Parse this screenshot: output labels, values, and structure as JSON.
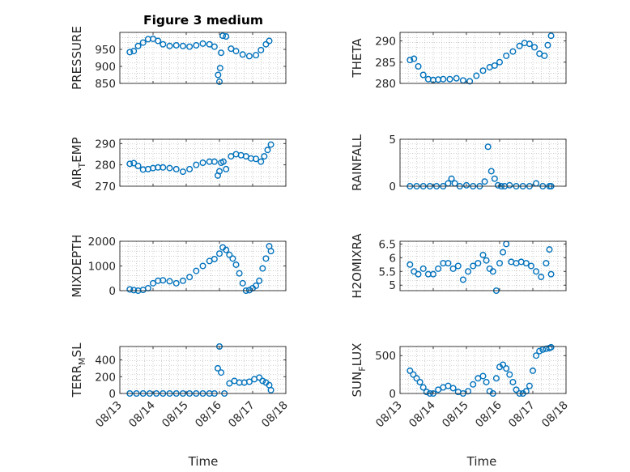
{
  "figure": {
    "title": "Figure 3 medium",
    "xlabel": "Time"
  },
  "colors": {
    "marker": "#0072BD",
    "axis": "#262626",
    "grid": "#b0b0b0",
    "background": "#ffffff"
  },
  "chart_data": [
    {
      "type": "scatter",
      "name": "pressure",
      "ylabel": "PRESSURE",
      "ylim": [
        850,
        1000
      ],
      "yticks": [
        850,
        900,
        950
      ],
      "ytick_labels": [
        "850",
        "900",
        "950"
      ],
      "xlim": [
        0,
        5
      ],
      "xticks": [
        0,
        1,
        2,
        3,
        4,
        5
      ],
      "xtick_labels": [],
      "grid": true,
      "marker": "open-circle",
      "x": [
        0.3,
        0.42,
        0.55,
        0.7,
        0.85,
        1.0,
        1.15,
        1.3,
        1.5,
        1.7,
        1.9,
        2.1,
        2.3,
        2.5,
        2.7,
        2.85,
        2.96,
        3.0,
        3.02,
        3.05,
        3.1,
        3.2,
        3.35,
        3.5,
        3.7,
        3.9,
        4.1,
        4.25,
        4.4,
        4.5
      ],
      "y": [
        942,
        945,
        960,
        970,
        980,
        981,
        975,
        965,
        960,
        962,
        960,
        958,
        962,
        967,
        965,
        958,
        875,
        855,
        895,
        940,
        990,
        988,
        952,
        945,
        935,
        930,
        933,
        948,
        965,
        975
      ]
    },
    {
      "type": "scatter",
      "name": "theta",
      "ylabel": "THETA",
      "ylim": [
        280,
        292
      ],
      "yticks": [
        280,
        285,
        290
      ],
      "ytick_labels": [
        "280",
        "285",
        "290"
      ],
      "xlim": [
        0,
        5
      ],
      "xticks": [
        0,
        1,
        2,
        3,
        4,
        5
      ],
      "xtick_labels": [],
      "grid": true,
      "marker": "open-circle",
      "x": [
        0.3,
        0.42,
        0.55,
        0.7,
        0.85,
        1.0,
        1.15,
        1.3,
        1.5,
        1.7,
        1.9,
        2.1,
        2.3,
        2.5,
        2.7,
        2.85,
        3.0,
        3.2,
        3.4,
        3.6,
        3.75,
        3.9,
        4.05,
        4.2,
        4.35,
        4.45,
        4.55
      ],
      "y": [
        285.5,
        285.8,
        284.0,
        282.0,
        281.0,
        280.8,
        280.9,
        281.0,
        281.0,
        281.2,
        280.7,
        280.5,
        281.8,
        283.0,
        283.8,
        284.2,
        285.0,
        286.5,
        287.5,
        288.8,
        289.5,
        289.3,
        288.5,
        287.0,
        286.5,
        289.0,
        291.2
      ]
    },
    {
      "type": "scatter",
      "name": "air_temp",
      "ylabel": "AIR_TEMP",
      "ylim": [
        270,
        292
      ],
      "yticks": [
        270,
        280,
        290
      ],
      "ytick_labels": [
        "270",
        "280",
        "290"
      ],
      "xlim": [
        0,
        5
      ],
      "xticks": [
        0,
        1,
        2,
        3,
        4,
        5
      ],
      "xtick_labels": [],
      "grid": true,
      "marker": "open-circle",
      "x": [
        0.3,
        0.42,
        0.55,
        0.7,
        0.85,
        1.0,
        1.15,
        1.3,
        1.5,
        1.7,
        1.9,
        2.1,
        2.3,
        2.5,
        2.7,
        2.85,
        2.95,
        3.0,
        3.05,
        3.12,
        3.2,
        3.35,
        3.5,
        3.65,
        3.8,
        3.95,
        4.1,
        4.25,
        4.35,
        4.45,
        4.55
      ],
      "y": [
        280.5,
        280.8,
        279.5,
        277.8,
        278.0,
        278.5,
        278.8,
        278.8,
        278.5,
        278.0,
        276.8,
        278.0,
        280.0,
        281.0,
        281.5,
        281.5,
        275.0,
        277.0,
        281.0,
        281.5,
        278.0,
        284.0,
        285.0,
        284.5,
        284.0,
        283.0,
        282.8,
        281.5,
        284.0,
        287.0,
        289.5
      ]
    },
    {
      "type": "scatter",
      "name": "rainfall",
      "ylabel": "RAINFALL",
      "ylim": [
        0,
        5
      ],
      "yticks": [
        0,
        5
      ],
      "ytick_labels": [
        "0",
        "5"
      ],
      "xlim": [
        0,
        5
      ],
      "xticks": [
        0,
        1,
        2,
        3,
        4,
        5
      ],
      "xtick_labels": [],
      "grid": true,
      "marker": "open-circle",
      "x": [
        0.3,
        0.5,
        0.7,
        0.9,
        1.1,
        1.3,
        1.45,
        1.55,
        1.65,
        1.8,
        2.0,
        2.2,
        2.4,
        2.55,
        2.65,
        2.75,
        2.85,
        2.95,
        3.05,
        3.15,
        3.3,
        3.5,
        3.7,
        3.9,
        4.1,
        4.3,
        4.5,
        4.55
      ],
      "y": [
        0,
        0,
        0,
        0,
        0,
        0,
        0.3,
        0.8,
        0.3,
        0,
        0.1,
        0,
        0,
        0.5,
        4.2,
        1.6,
        0.8,
        0.1,
        0,
        0,
        0.1,
        0,
        0,
        0,
        0.3,
        0,
        0,
        0
      ]
    },
    {
      "type": "scatter",
      "name": "mixdepth",
      "ylabel": "MIXDEPTH",
      "ylim": [
        0,
        2000
      ],
      "yticks": [
        0,
        1000,
        2000
      ],
      "ytick_labels": [
        "0",
        "1000",
        "2000"
      ],
      "xlim": [
        0,
        5
      ],
      "xticks": [
        0,
        1,
        2,
        3,
        4,
        5
      ],
      "xtick_labels": [],
      "grid": true,
      "marker": "open-circle",
      "x": [
        0.3,
        0.42,
        0.55,
        0.7,
        0.85,
        1.0,
        1.15,
        1.3,
        1.5,
        1.7,
        1.9,
        2.1,
        2.3,
        2.5,
        2.7,
        2.85,
        3.0,
        3.1,
        3.2,
        3.3,
        3.4,
        3.5,
        3.6,
        3.7,
        3.8,
        3.9,
        4.0,
        4.1,
        4.2,
        4.3,
        4.4,
        4.5,
        4.55
      ],
      "y": [
        50,
        20,
        0,
        30,
        100,
        300,
        400,
        420,
        380,
        300,
        400,
        550,
        800,
        1000,
        1200,
        1280,
        1500,
        1750,
        1650,
        1450,
        1300,
        1050,
        700,
        300,
        0,
        20,
        100,
        200,
        400,
        900,
        1300,
        1800,
        1600
      ]
    },
    {
      "type": "scatter",
      "name": "h2omixra",
      "ylabel": "H2OMIXRA",
      "ylim": [
        4.8,
        6.6
      ],
      "yticks": [
        5,
        5.5,
        6,
        6.5
      ],
      "ytick_labels": [
        "5",
        "5.5",
        "6",
        "6.5"
      ],
      "xlim": [
        0,
        5
      ],
      "xticks": [
        0,
        1,
        2,
        3,
        4,
        5
      ],
      "xtick_labels": [],
      "grid": true,
      "marker": "open-circle",
      "x": [
        0.3,
        0.42,
        0.55,
        0.7,
        0.85,
        1.0,
        1.15,
        1.3,
        1.45,
        1.6,
        1.75,
        1.9,
        2.05,
        2.2,
        2.35,
        2.5,
        2.6,
        2.7,
        2.8,
        2.9,
        3.0,
        3.1,
        3.2,
        3.35,
        3.5,
        3.65,
        3.8,
        3.95,
        4.1,
        4.25,
        4.4,
        4.5,
        4.55
      ],
      "y": [
        5.75,
        5.5,
        5.4,
        5.6,
        5.4,
        5.4,
        5.6,
        5.8,
        5.8,
        5.6,
        5.7,
        5.2,
        5.5,
        5.7,
        5.8,
        6.1,
        5.9,
        5.6,
        5.5,
        4.8,
        5.8,
        6.2,
        6.5,
        5.85,
        5.8,
        5.85,
        5.8,
        5.7,
        5.5,
        5.3,
        5.8,
        6.3,
        5.4
      ]
    },
    {
      "type": "scatter",
      "name": "terr_msl",
      "ylabel": "TERR_MSL",
      "ylim": [
        0,
        560
      ],
      "yticks": [
        0,
        200,
        400
      ],
      "ytick_labels": [
        "0",
        "200",
        "400"
      ],
      "xlim": [
        0,
        5
      ],
      "xticks": [
        0,
        1,
        2,
        3,
        4,
        5
      ],
      "xtick_labels": [
        "08/13",
        "08/14",
        "08/15",
        "08/16",
        "08/17",
        "08/18"
      ],
      "grid": true,
      "marker": "open-circle",
      "x": [
        0.3,
        0.5,
        0.7,
        0.9,
        1.1,
        1.3,
        1.5,
        1.7,
        1.9,
        2.1,
        2.3,
        2.5,
        2.7,
        2.85,
        2.95,
        3.0,
        3.05,
        3.15,
        3.3,
        3.45,
        3.6,
        3.75,
        3.9,
        4.05,
        4.2,
        4.3,
        4.4,
        4.5,
        4.55
      ],
      "y": [
        0,
        0,
        0,
        0,
        0,
        0,
        0,
        0,
        0,
        0,
        0,
        0,
        0,
        0,
        300,
        560,
        250,
        0,
        120,
        150,
        130,
        130,
        140,
        170,
        190,
        150,
        130,
        100,
        40
      ]
    },
    {
      "type": "scatter",
      "name": "sun_flux",
      "ylabel": "SUN_FLUX",
      "ylim": [
        0,
        620
      ],
      "yticks": [
        0,
        500
      ],
      "ytick_labels": [
        "0",
        "500"
      ],
      "xlim": [
        0,
        5
      ],
      "xticks": [
        0,
        1,
        2,
        3,
        4,
        5
      ],
      "xtick_labels": [
        "08/13",
        "08/14",
        "08/15",
        "08/16",
        "08/17",
        "08/18"
      ],
      "grid": true,
      "marker": "open-circle",
      "x": [
        0.3,
        0.4,
        0.5,
        0.6,
        0.7,
        0.8,
        0.9,
        1.0,
        1.15,
        1.3,
        1.45,
        1.6,
        1.75,
        1.9,
        2.05,
        2.2,
        2.35,
        2.5,
        2.6,
        2.7,
        2.8,
        2.9,
        3.0,
        3.1,
        3.2,
        3.3,
        3.4,
        3.5,
        3.6,
        3.7,
        3.8,
        3.9,
        4.0,
        4.1,
        4.2,
        4.3,
        4.4,
        4.5,
        4.55
      ],
      "y": [
        300,
        250,
        200,
        150,
        80,
        20,
        0,
        0,
        50,
        80,
        100,
        70,
        20,
        0,
        30,
        120,
        200,
        230,
        150,
        30,
        0,
        200,
        350,
        380,
        330,
        250,
        150,
        50,
        0,
        0,
        30,
        100,
        300,
        500,
        560,
        580,
        590,
        600,
        610
      ]
    }
  ]
}
